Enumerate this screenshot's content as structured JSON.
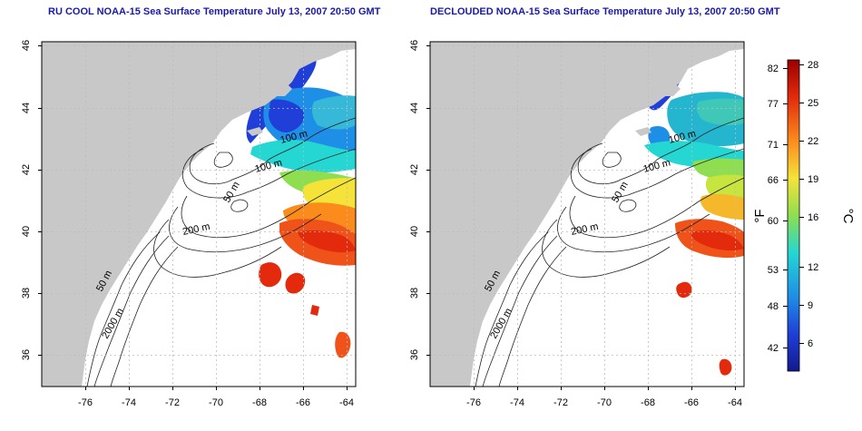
{
  "panels": [
    {
      "title": "RU COOL NOAA-15 Sea Surface Temperature July 13, 2007 20:50 GMT",
      "lon_ticks": [
        "-76",
        "-74",
        "-72",
        "-70",
        "-68",
        "-66",
        "-64"
      ],
      "lat_ticks": [
        "36",
        "38",
        "40",
        "42",
        "44",
        "46"
      ],
      "contour_labels": [
        "100 m",
        "100 m",
        "50 m",
        "200 m",
        "50 m",
        "2000 m"
      ]
    },
    {
      "title": "DECLOUDED NOAA-15 Sea Surface Temperature July 13, 2007 20:50 GMT",
      "lon_ticks": [
        "-76",
        "-74",
        "-72",
        "-70",
        "-68",
        "-66",
        "-64"
      ],
      "lat_ticks": [
        "36",
        "38",
        "40",
        "42",
        "44",
        "46"
      ],
      "contour_labels": [
        "100 m",
        "100 m",
        "50 m",
        "200 m",
        "50 m",
        "2000 m"
      ]
    }
  ],
  "colorbar": {
    "f_label": "°F",
    "c_label": "°C",
    "f_ticks": [
      "82",
      "77",
      "71",
      "66",
      "60",
      "53",
      "48",
      "42"
    ],
    "c_ticks": [
      "28",
      "25",
      "22",
      "19",
      "16",
      "12",
      "9",
      "6"
    ],
    "colors": [
      "#9b0000",
      "#e32a0c",
      "#fb8c1c",
      "#f5e33a",
      "#8fde4f",
      "#24d7d2",
      "#1e8fe6",
      "#1f3fd8",
      "#14188f"
    ]
  },
  "colors": {
    "land": "#c8c8c8",
    "title": "#1a1aa6",
    "grid": "#c8c8c8"
  }
}
